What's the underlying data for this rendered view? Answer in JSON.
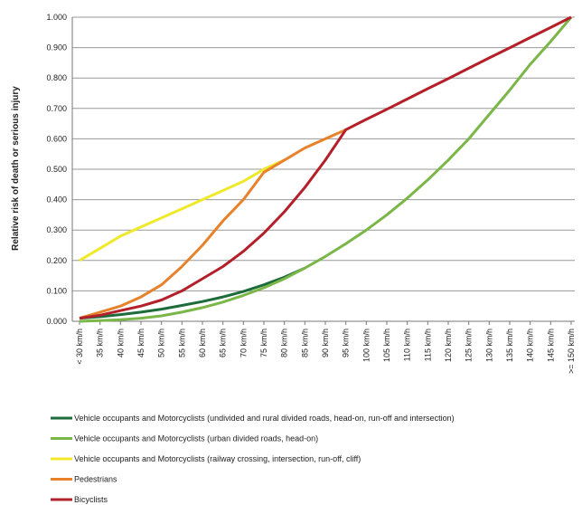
{
  "chart_data": {
    "type": "line",
    "y_label": "Relative risk of death or serious injury",
    "categories": [
      "< 30 km/h",
      "35 km/h",
      "40 km/h",
      "45 km/h",
      "50 km/h",
      "55 km/h",
      "60 km/h",
      "65 km/h",
      "70 km/h",
      "75 km/h",
      "80 km/h",
      "85 km/h",
      "90 km/h",
      "95 km/h",
      "100 km/h",
      "105 km/h",
      "110 km/h",
      "115 km/h",
      "120 km/h",
      "125 km/h",
      "130 km/h",
      "135 km/h",
      "140 km/h",
      "145 km/h",
      ">= 150 km/h"
    ],
    "ylim": [
      0,
      1
    ],
    "yticks": [
      {
        "value": 0,
        "label": "0.000"
      },
      {
        "value": 0.1,
        "label": "0.100"
      },
      {
        "value": 0.2,
        "label": "0.200"
      },
      {
        "value": 0.3,
        "label": "0.300"
      },
      {
        "value": 0.4,
        "label": "0.400"
      },
      {
        "value": 0.5,
        "label": "0.500"
      },
      {
        "value": 0.6,
        "label": "0.600"
      },
      {
        "value": 0.7,
        "label": "0.700"
      },
      {
        "value": 0.8,
        "label": "0.800"
      },
      {
        "value": 0.9,
        "label": "0.900"
      },
      {
        "value": 1,
        "label": "1.000"
      }
    ],
    "grid": true,
    "legend": "bottom",
    "series": [
      {
        "name": "Vehicle occupants and Motorcyclists (undivided and rural divided roads, head-on, run-off and intersection)",
        "color": "#1e6b3c",
        "values": [
          0.01,
          0.015,
          0.022,
          0.03,
          0.04,
          0.052,
          0.065,
          0.08,
          0.098,
          0.12,
          0.145,
          0.175,
          null,
          null,
          null,
          null,
          null,
          null,
          null,
          null,
          null,
          null,
          null,
          null,
          null
        ]
      },
      {
        "name": "Vehicle occupants and Motorcyclists (urban divided roads, head-on)",
        "color": "#7ab648",
        "values": [
          0,
          0.002,
          0.005,
          0.01,
          0.018,
          0.03,
          0.045,
          0.063,
          0.085,
          0.11,
          0.14,
          0.175,
          0.213,
          0.255,
          0.3,
          0.35,
          0.405,
          0.465,
          0.53,
          0.6,
          0.68,
          0.76,
          0.845,
          0.92,
          1
        ]
      },
      {
        "name": "Vehicle occupants and Motorcyclists (railway crossing, intersection, run-off, cliff)",
        "color": "#f0e92a",
        "values": [
          0.2,
          0.24,
          0.28,
          0.31,
          0.34,
          0.37,
          0.4,
          0.43,
          0.46,
          0.5,
          0.53,
          null,
          null,
          null,
          null,
          null,
          null,
          null,
          null,
          null,
          null,
          null,
          null,
          null,
          null
        ]
      },
      {
        "name": "Pedestrians",
        "color": "#e8822a",
        "values": [
          0.01,
          0.03,
          0.05,
          0.08,
          0.12,
          0.18,
          0.25,
          0.33,
          0.4,
          0.49,
          0.53,
          0.57,
          0.6,
          0.63,
          null,
          null,
          null,
          null,
          null,
          null,
          null,
          null,
          null,
          null,
          null
        ]
      },
      {
        "name": "Bicyclists",
        "color": "#b3202a",
        "values": [
          0.01,
          0.02,
          0.035,
          0.05,
          0.07,
          0.1,
          0.14,
          0.18,
          0.23,
          0.29,
          0.36,
          0.44,
          0.53,
          0.63,
          0.664,
          0.697,
          0.731,
          0.765,
          0.798,
          0.832,
          0.866,
          0.899,
          0.933,
          0.966,
          1
        ]
      }
    ]
  }
}
